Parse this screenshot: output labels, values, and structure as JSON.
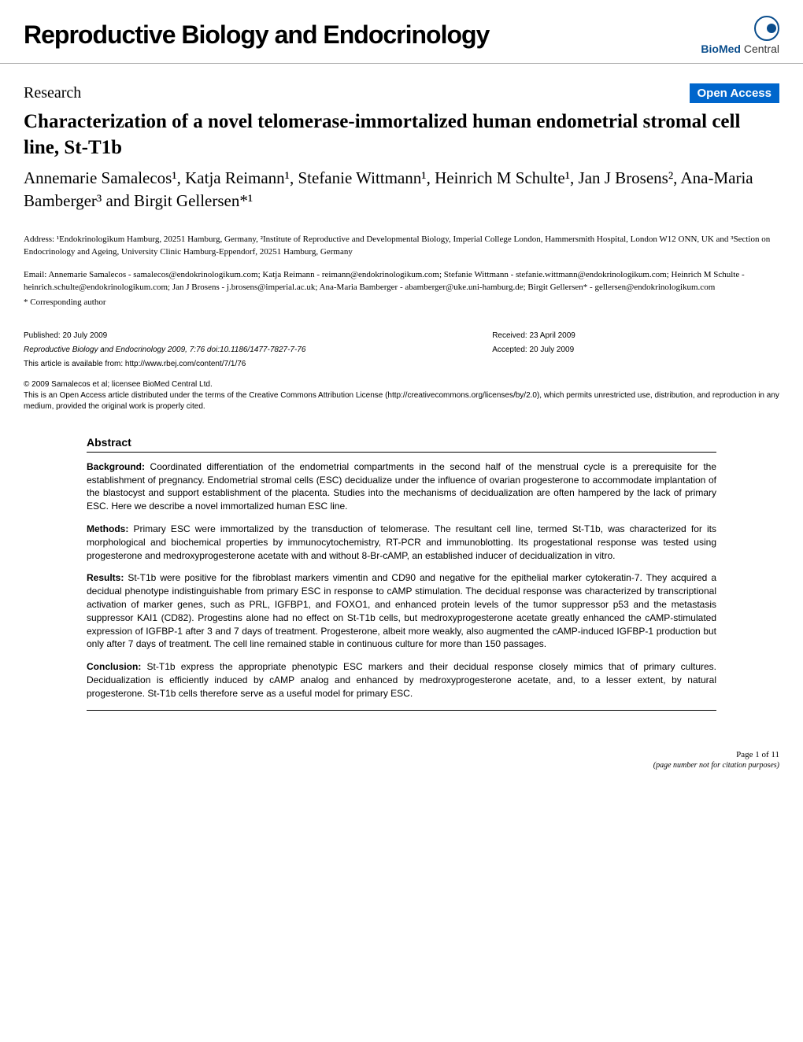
{
  "journal_title": "Reproductive Biology and Endocrinology",
  "logo_text_bold": "BioMed",
  "logo_text_light": " Central",
  "research_label": "Research",
  "open_access": "Open Access",
  "article_title": "Characterization of a novel telomerase-immortalized human endometrial stromal cell line, St-T1b",
  "authors": "Annemarie Samalecos¹, Katja Reimann¹, Stefanie Wittmann¹, Heinrich M Schulte¹, Jan J Brosens², Ana-Maria Bamberger³ and Birgit Gellersen*¹",
  "affiliations": "Address: ¹Endokrinologikum Hamburg, 20251 Hamburg, Germany, ²Institute of Reproductive and Developmental Biology, Imperial College London, Hammersmith Hospital, London W12 ONN, UK and ³Section on Endocrinology and Ageing, University Clinic Hamburg-Eppendorf, 20251 Hamburg, Germany",
  "emails": "Email: Annemarie Samalecos - samalecos@endokrinologikum.com; Katja Reimann - reimann@endokrinologikum.com; Stefanie Wittmann - stefanie.wittmann@endokrinologikum.com; Heinrich M Schulte - heinrich.schulte@endokrinologikum.com; Jan J Brosens - j.brosens@imperial.ac.uk; Ana-Maria Bamberger - abamberger@uke.uni-hamburg.de; Birgit Gellersen* - gellersen@endokrinologikum.com",
  "corresponding": "* Corresponding author",
  "published": "Published: 20 July 2009",
  "citation_line": "Reproductive Biology and Endocrinology 2009, 7:76    doi:10.1186/1477-7827-7-76",
  "available_from": "This article is available from: http://www.rbej.com/content/7/1/76",
  "received": "Received: 23 April 2009",
  "accepted": "Accepted: 20 July 2009",
  "copyright_line1": "© 2009 Samalecos et al; licensee BioMed Central Ltd.",
  "copyright_line2": "This is an Open Access article distributed under the terms of the Creative Commons Attribution License (http://creativecommons.org/licenses/by/2.0), which permits unrestricted use, distribution, and reproduction in any medium, provided the original work is properly cited.",
  "abstract_heading": "Abstract",
  "abstract": {
    "background_label": "Background:",
    "background": " Coordinated differentiation of the endometrial compartments in the second half of the menstrual cycle is a prerequisite for the establishment of pregnancy. Endometrial stromal cells (ESC) decidualize under the influence of ovarian progesterone to accommodate implantation of the blastocyst and support establishment of the placenta. Studies into the mechanisms of decidualization are often hampered by the lack of primary ESC. Here we describe a novel immortalized human ESC line.",
    "methods_label": "Methods:",
    "methods": " Primary ESC were immortalized by the transduction of telomerase. The resultant cell line, termed St-T1b, was characterized for its morphological and biochemical properties by immunocytochemistry, RT-PCR and immunoblotting. Its progestational response was tested using progesterone and medroxyprogesterone acetate with and without 8-Br-cAMP, an established inducer of decidualization in vitro.",
    "results_label": "Results:",
    "results": " St-T1b were positive for the fibroblast markers vimentin and CD90 and negative for the epithelial marker cytokeratin-7. They acquired a decidual phenotype indistinguishable from primary ESC in response to cAMP stimulation. The decidual response was characterized by transcriptional activation of marker genes, such as PRL, IGFBP1, and FOXO1, and enhanced protein levels of the tumor suppressor p53 and the metastasis suppressor KAI1 (CD82). Progestins alone had no effect on St-T1b cells, but medroxyprogesterone acetate greatly enhanced the cAMP-stimulated expression of IGFBP-1 after 3 and 7 days of treatment. Progesterone, albeit more weakly, also augmented the cAMP-induced IGFBP-1 production but only after 7 days of treatment. The cell line remained stable in continuous culture for more than 150 passages.",
    "conclusion_label": "Conclusion:",
    "conclusion": " St-T1b express the appropriate phenotypic ESC markers and their decidual response closely mimics that of primary cultures. Decidualization is efficiently induced by cAMP analog and enhanced by medroxyprogesterone acetate, and, to a lesser extent, by natural progesterone. St-T1b cells therefore serve as a useful model for primary ESC."
  },
  "footer": {
    "page": "Page 1 of 11",
    "citation": "(page number not for citation purposes)"
  },
  "colors": {
    "open_access_bg": "#0066cc",
    "logo_blue": "#0a4d8c",
    "border_gray": "#aaaaaa"
  }
}
